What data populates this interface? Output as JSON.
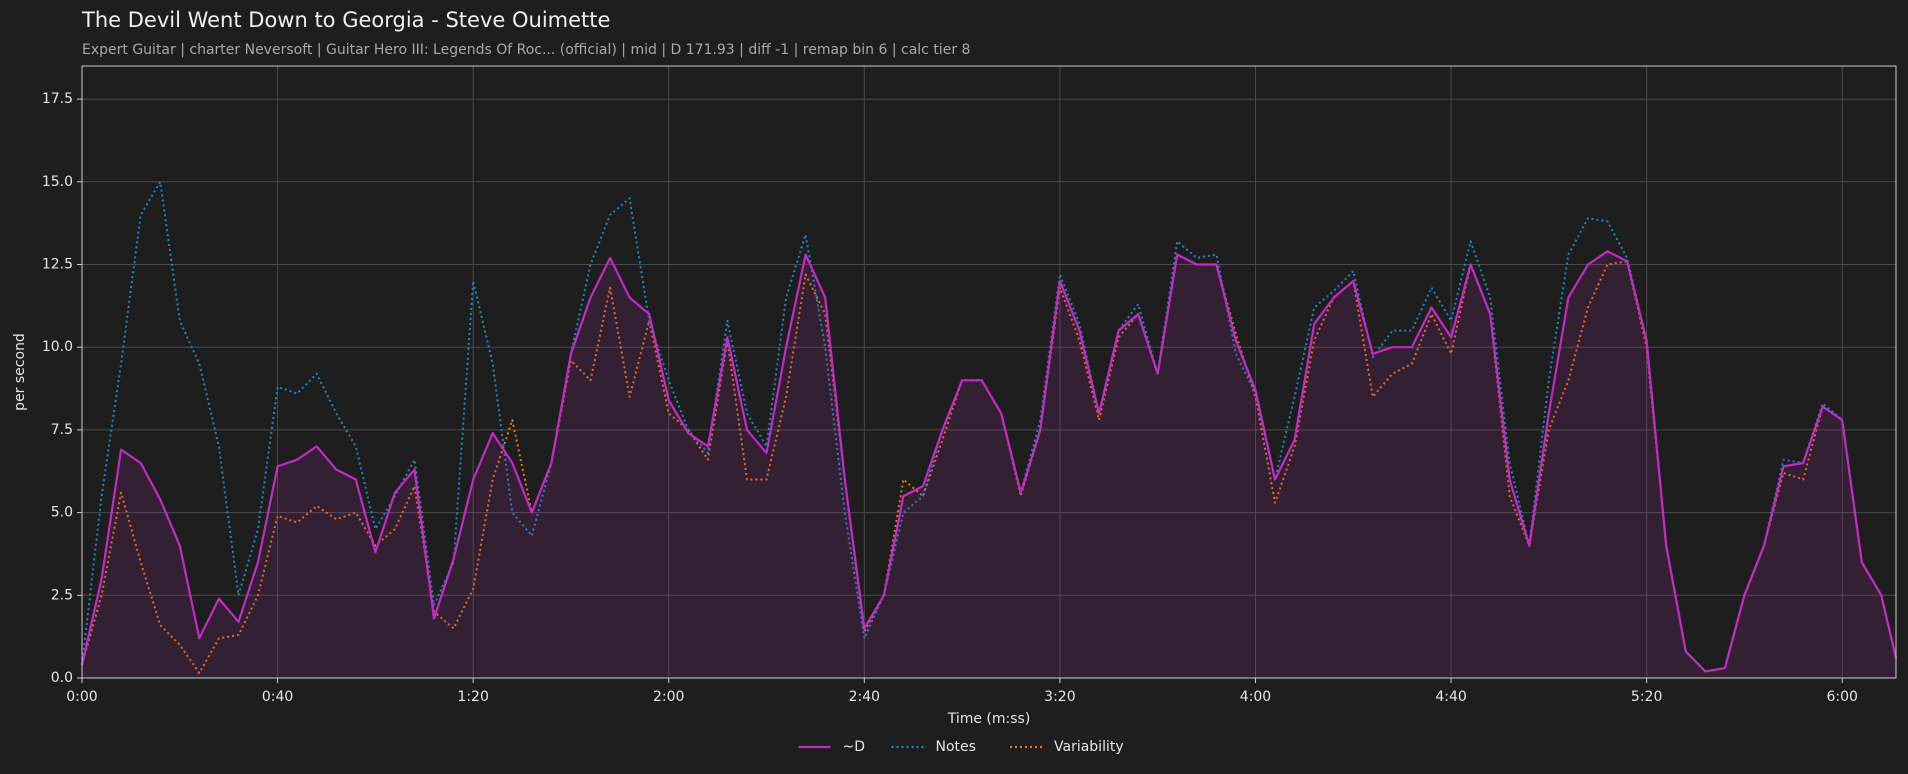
{
  "chart_data": {
    "type": "line",
    "title": "The Devil Went Down to Georgia - Steve Ouimette",
    "subtitle": "Expert Guitar  |  charter Neversoft  |  Guitar Hero III: Legends Of Roc... (official)  |  mid  |  D 171.93  |  diff -1  |  remap bin 6  |  calc tier 8",
    "xlabel": "Time (m:ss)",
    "ylabel": "per second",
    "x": [
      0,
      4,
      8,
      12,
      16,
      20,
      24,
      28,
      32,
      36,
      40,
      44,
      48,
      52,
      56,
      60,
      64,
      68,
      72,
      76,
      80,
      84,
      88,
      92,
      96,
      100,
      104,
      108,
      112,
      116,
      120,
      124,
      128,
      132,
      136,
      140,
      144,
      148,
      152,
      156,
      160,
      164,
      168,
      172,
      176,
      180,
      184,
      188,
      192,
      196,
      200,
      204,
      208,
      212,
      216,
      220,
      224,
      228,
      232,
      236,
      240,
      244,
      248,
      252,
      256,
      260,
      264,
      268,
      272,
      276,
      280,
      284,
      288,
      292,
      296,
      300,
      304,
      308,
      312,
      316,
      320,
      324,
      328,
      332,
      336,
      340,
      344,
      348,
      352,
      356,
      360,
      364,
      368,
      371
    ],
    "series": [
      {
        "name": "~D",
        "color": "#c02cc4",
        "style": "solid",
        "fill": true,
        "values": [
          0.4,
          3.0,
          6.9,
          6.5,
          5.4,
          4.0,
          1.2,
          2.4,
          1.7,
          3.5,
          6.4,
          6.6,
          7.0,
          6.3,
          6.0,
          3.8,
          5.6,
          6.3,
          1.8,
          3.6,
          6.0,
          7.4,
          6.5,
          5.0,
          6.5,
          9.8,
          11.5,
          12.7,
          11.5,
          11.0,
          8.4,
          7.4,
          7.0,
          10.3,
          7.5,
          6.8,
          10.0,
          12.8,
          11.5,
          6.0,
          1.5,
          2.5,
          5.5,
          5.8,
          7.5,
          9.0,
          9.0,
          8.0,
          5.6,
          7.5,
          12.0,
          10.5,
          8.0,
          10.5,
          11.0,
          9.2,
          12.8,
          12.5,
          12.5,
          10.2,
          8.7,
          6.0,
          7.2,
          10.7,
          11.5,
          12.0,
          9.8,
          10.0,
          10.0,
          11.2,
          10.3,
          12.5,
          11.0,
          6.0,
          4.0,
          8.0,
          11.5,
          12.5,
          12.9,
          12.6,
          10.2,
          4.0,
          0.8,
          0.2,
          0.3,
          2.5,
          4.0,
          6.4,
          6.5,
          8.2,
          7.8,
          3.5,
          2.5,
          0.6
        ]
      },
      {
        "name": "Notes",
        "color": "#1f86c4",
        "style": "dotted",
        "values": [
          0.4,
          5.5,
          9.5,
          14.0,
          15.0,
          10.8,
          9.5,
          7.0,
          2.5,
          4.5,
          8.8,
          8.6,
          9.2,
          8.0,
          7.0,
          4.5,
          5.5,
          6.6,
          2.2,
          3.5,
          12.0,
          9.5,
          5.0,
          4.3,
          6.5,
          9.8,
          12.5,
          14.0,
          14.5,
          10.8,
          9.0,
          7.5,
          6.8,
          10.8,
          8.0,
          7.0,
          11.5,
          13.4,
          10.0,
          5.0,
          1.2,
          2.5,
          5.0,
          5.5,
          7.5,
          9.0,
          9.0,
          8.0,
          5.6,
          7.8,
          12.2,
          10.7,
          8.0,
          10.5,
          11.3,
          9.2,
          13.2,
          12.7,
          12.8,
          9.8,
          8.6,
          6.0,
          8.5,
          11.2,
          11.7,
          12.3,
          9.7,
          10.5,
          10.5,
          11.8,
          10.8,
          13.2,
          11.5,
          6.5,
          4.0,
          9.0,
          12.8,
          13.9,
          13.8,
          12.7,
          10.2,
          4.0,
          0.8,
          0.2,
          0.3,
          2.5,
          4.0,
          6.6,
          6.5,
          8.3,
          7.8,
          3.5,
          2.5,
          0.6
        ]
      },
      {
        "name": "Variability",
        "color": "#e8731a",
        "style": "dotted",
        "values": [
          0.4,
          2.5,
          5.6,
          3.5,
          1.6,
          1.0,
          0.15,
          1.2,
          1.3,
          2.5,
          4.9,
          4.7,
          5.2,
          4.8,
          5.0,
          4.0,
          4.5,
          5.8,
          2.0,
          1.5,
          2.7,
          6.0,
          7.8,
          5.0,
          6.5,
          9.6,
          9.0,
          11.8,
          8.5,
          10.8,
          8.0,
          7.5,
          6.6,
          10.2,
          6.0,
          6.0,
          8.5,
          12.2,
          11.0,
          6.0,
          1.4,
          2.5,
          6.0,
          5.5,
          7.2,
          9.0,
          9.0,
          8.0,
          5.5,
          7.5,
          11.8,
          10.2,
          7.8,
          10.3,
          11.0,
          9.2,
          12.8,
          12.5,
          12.5,
          10.4,
          8.5,
          5.3,
          7.0,
          10.2,
          11.5,
          12.0,
          8.5,
          9.2,
          9.5,
          11.0,
          9.8,
          12.5,
          11.0,
          5.5,
          4.0,
          7.5,
          9.0,
          11.2,
          12.5,
          12.6,
          10.0,
          4.0,
          0.8,
          0.2,
          0.3,
          2.5,
          4.0,
          6.2,
          6.0,
          8.2,
          7.8,
          3.5,
          2.5,
          0.6
        ]
      }
    ],
    "xlim": [
      0,
      371
    ],
    "xticks": [
      {
        "value": 0,
        "label": "0:00"
      },
      {
        "value": 40,
        "label": "0:40"
      },
      {
        "value": 80,
        "label": "1:20"
      },
      {
        "value": 120,
        "label": "2:00"
      },
      {
        "value": 160,
        "label": "2:40"
      },
      {
        "value": 200,
        "label": "3:20"
      },
      {
        "value": 240,
        "label": "4:00"
      },
      {
        "value": 280,
        "label": "4:40"
      },
      {
        "value": 320,
        "label": "5:20"
      },
      {
        "value": 360,
        "label": "6:00"
      }
    ],
    "ylim": [
      0,
      18.5
    ],
    "yticks": [
      {
        "value": 0,
        "label": "0.0"
      },
      2.5,
      {
        "value": 5,
        "label": "5.0"
      },
      7.5,
      {
        "value": 10,
        "label": "10.0"
      },
      12.5,
      {
        "value": 15,
        "label": "15.0"
      },
      17.5
    ],
    "grid": true,
    "legend": "bottom"
  }
}
